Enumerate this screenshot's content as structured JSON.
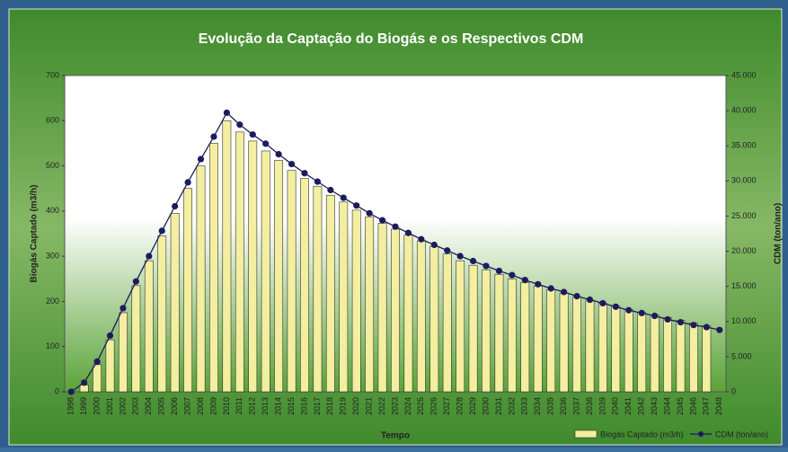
{
  "chart_data": {
    "type": "bar-line",
    "title": "Evolução da Captação do Biogás e os Respectivos CDM",
    "x_label": "Tempo",
    "y_label": "Biogás Captado (m3/h)",
    "y2_label": "CDM (ton/ano)",
    "categories": [
      "1998",
      "1999",
      "2000",
      "2001",
      "2002",
      "2003",
      "2004",
      "2005",
      "2006",
      "2007",
      "2008",
      "2009",
      "2010",
      "2011",
      "2012",
      "2013",
      "2014",
      "2015",
      "2016",
      "2017",
      "2018",
      "2019",
      "2020",
      "2021",
      "2022",
      "2023",
      "2024",
      "2025",
      "2026",
      "2027",
      "2028",
      "2029",
      "2030",
      "2031",
      "2032",
      "2033",
      "2034",
      "2035",
      "2036",
      "2037",
      "2038",
      "2039",
      "2040",
      "2041",
      "2042",
      "2043",
      "2044",
      "2045",
      "2046",
      "2047",
      "2048"
    ],
    "series": [
      {
        "name": "Biogás Captado (m3/h)",
        "type": "bar",
        "color": "#f3eea0",
        "values": [
          0,
          15,
          60,
          115,
          175,
          235,
          290,
          345,
          395,
          450,
          500,
          550,
          600,
          575,
          555,
          533,
          512,
          490,
          472,
          455,
          435,
          420,
          402,
          387,
          373,
          360,
          347,
          334,
          322,
          305,
          290,
          280,
          270,
          260,
          250,
          242,
          234,
          226,
          218,
          210,
          203,
          196,
          189,
          182,
          176,
          170,
          164,
          158,
          152,
          146,
          null
        ]
      },
      {
        "name": "CDM (ton/ano)",
        "type": "line",
        "axis": "y2",
        "color": "#1c1c5c",
        "values": [
          0,
          1300,
          4300,
          8000,
          11900,
          15700,
          19300,
          22900,
          26400,
          29800,
          33100,
          36300,
          39700,
          38000,
          36600,
          35300,
          33800,
          32400,
          31100,
          29900,
          28700,
          27600,
          26500,
          25400,
          24400,
          23500,
          22600,
          21700,
          20900,
          20100,
          19300,
          18600,
          17900,
          17200,
          16600,
          15900,
          15300,
          14700,
          14200,
          13600,
          13100,
          12600,
          12100,
          11600,
          11200,
          10800,
          10300,
          9900,
          9500,
          9200,
          8800
        ]
      }
    ],
    "ylim": [
      0,
      700
    ],
    "yticks": [
      0,
      100,
      200,
      300,
      400,
      500,
      600,
      700
    ],
    "y2lim": [
      0,
      45000
    ],
    "y2ticks": [
      0,
      {
        "value": 5000,
        "label": "5.000"
      },
      {
        "value": 10000,
        "label": "10.000"
      },
      {
        "value": 15000,
        "label": "15.000"
      },
      {
        "value": 20000,
        "label": "20.000"
      },
      {
        "value": 25000,
        "label": "25.000"
      },
      {
        "value": 30000,
        "label": "30.000"
      },
      {
        "value": 35000,
        "label": "35.000"
      },
      {
        "value": 40000,
        "label": "40.000"
      },
      {
        "value": 45000,
        "label": "45.000"
      }
    ],
    "legend": "bottom-right"
  }
}
